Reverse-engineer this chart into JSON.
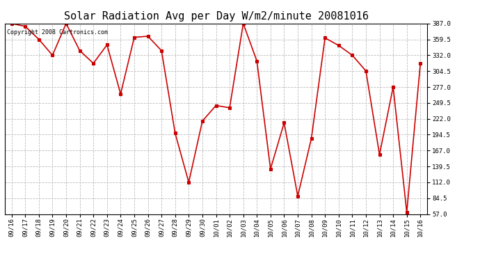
{
  "title": "Solar Radiation Avg per Day W/m2/minute 20081016",
  "copyright_text": "Copyright 2008 Cartronics.com",
  "dates": [
    "09/16",
    "09/17",
    "09/18",
    "09/19",
    "09/20",
    "09/21",
    "09/22",
    "09/23",
    "09/24",
    "09/25",
    "09/26",
    "09/27",
    "09/28",
    "09/29",
    "09/30",
    "10/01",
    "10/02",
    "10/03",
    "10/04",
    "10/05",
    "10/06",
    "10/07",
    "10/08",
    "10/09",
    "10/10",
    "10/11",
    "10/12",
    "10/13",
    "10/14",
    "10/15",
    "10/16"
  ],
  "values": [
    387.0,
    382.0,
    359.5,
    332.0,
    387.0,
    340.0,
    318.0,
    350.0,
    265.0,
    363.0,
    365.0,
    340.0,
    197.0,
    112.0,
    218.0,
    245.0,
    241.0,
    387.0,
    322.0,
    135.0,
    215.0,
    88.0,
    188.0,
    362.0,
    349.0,
    332.0,
    305.0,
    160.0,
    277.0,
    60.0,
    318.0
  ],
  "line_color": "#cc0000",
  "marker_color": "#cc0000",
  "bg_color": "#ffffff",
  "grid_color": "#bbbbbb",
  "ylim_min": 57.0,
  "ylim_max": 387.0,
  "yticks": [
    57.0,
    84.5,
    112.0,
    139.5,
    167.0,
    194.5,
    222.0,
    249.5,
    277.0,
    304.5,
    332.0,
    359.5,
    387.0
  ],
  "title_fontsize": 11,
  "tick_fontsize": 6.5,
  "copyright_fontsize": 6
}
